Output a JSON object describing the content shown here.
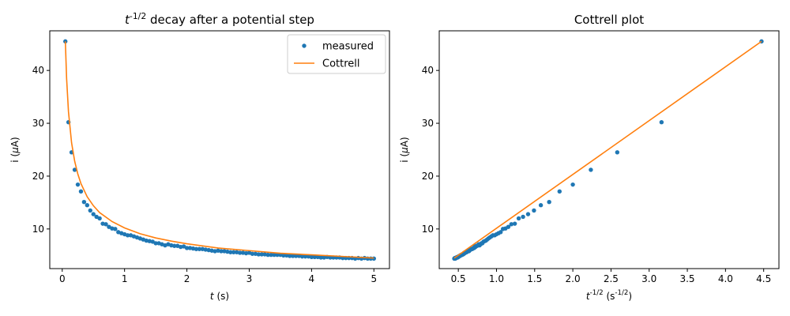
{
  "colors": {
    "measured": "#1f77b4",
    "fit": "#ff7f0e"
  },
  "chart_data": [
    {
      "type": "scatter",
      "title": "t^{-1/2} decay after a potential step",
      "xlabel": "t (s)",
      "ylabel": "i (μA)",
      "xlim": [
        -0.2,
        5.25
      ],
      "ylim": [
        2.5,
        47.5
      ],
      "xticks": [
        0,
        1,
        2,
        3,
        4,
        5
      ],
      "yticks": [
        10,
        20,
        30,
        40
      ],
      "grid": false,
      "legend_position": "top-right",
      "series": [
        {
          "name": "measured",
          "kind": "markers",
          "x": [
            0.05,
            0.1,
            0.15,
            0.2,
            0.25,
            0.3,
            0.35,
            0.4,
            0.45,
            0.5,
            0.55,
            0.6,
            0.65,
            0.7,
            0.75,
            0.8,
            0.85,
            0.9,
            0.95,
            1.0,
            1.05,
            1.1,
            1.15,
            1.2,
            1.25,
            1.3,
            1.35,
            1.4,
            1.45,
            1.5,
            1.55,
            1.6,
            1.65,
            1.7,
            1.75,
            1.8,
            1.85,
            1.9,
            1.95,
            2.0,
            2.05,
            2.1,
            2.15,
            2.2,
            2.25,
            2.3,
            2.35,
            2.4,
            2.45,
            2.5,
            2.55,
            2.6,
            2.65,
            2.7,
            2.75,
            2.8,
            2.85,
            2.9,
            2.95,
            3.0,
            3.05,
            3.1,
            3.15,
            3.2,
            3.25,
            3.3,
            3.35,
            3.4,
            3.45,
            3.5,
            3.55,
            3.6,
            3.65,
            3.7,
            3.75,
            3.8,
            3.85,
            3.9,
            3.95,
            4.0,
            4.05,
            4.1,
            4.15,
            4.2,
            4.25,
            4.3,
            4.35,
            4.4,
            4.45,
            4.5,
            4.55,
            4.6,
            4.65,
            4.7,
            4.75,
            4.8,
            4.85,
            4.9,
            4.95,
            5.0
          ],
          "y": [
            45.5,
            30.2,
            24.5,
            21.2,
            18.4,
            17.1,
            15.1,
            14.5,
            13.5,
            12.8,
            12.3,
            12.0,
            11.0,
            10.9,
            10.4,
            10.1,
            10.0,
            9.4,
            9.2,
            9.0,
            8.8,
            8.8,
            8.6,
            8.4,
            8.2,
            8.0,
            7.8,
            7.7,
            7.6,
            7.3,
            7.3,
            7.1,
            6.9,
            7.1,
            6.9,
            6.8,
            6.8,
            6.6,
            6.7,
            6.4,
            6.4,
            6.3,
            6.2,
            6.2,
            6.2,
            6.1,
            6.0,
            5.9,
            5.8,
            5.9,
            5.8,
            5.8,
            5.7,
            5.6,
            5.6,
            5.6,
            5.5,
            5.5,
            5.4,
            5.5,
            5.3,
            5.3,
            5.2,
            5.2,
            5.2,
            5.1,
            5.1,
            5.1,
            5.1,
            5.1,
            5.0,
            5.0,
            4.9,
            4.9,
            4.9,
            4.9,
            4.8,
            4.8,
            4.8,
            4.7,
            4.7,
            4.7,
            4.6,
            4.6,
            4.7,
            4.6,
            4.6,
            4.6,
            4.6,
            4.5,
            4.5,
            4.5,
            4.5,
            4.4,
            4.5,
            4.4,
            4.5,
            4.4,
            4.4,
            4.4
          ]
        },
        {
          "name": "Cottrell",
          "kind": "line",
          "x": [
            0.05,
            0.07,
            0.1,
            0.15,
            0.2,
            0.25,
            0.3,
            0.4,
            0.5,
            0.6,
            0.8,
            1.0,
            1.25,
            1.5,
            1.75,
            2.0,
            2.5,
            3.0,
            3.5,
            4.0,
            4.5,
            5.0
          ],
          "y": [
            45.5,
            38.5,
            32.2,
            26.3,
            22.8,
            20.4,
            18.6,
            16.1,
            14.4,
            13.1,
            11.4,
            10.2,
            9.1,
            8.3,
            7.7,
            7.2,
            6.4,
            5.9,
            5.4,
            5.1,
            4.8,
            4.5
          ]
        }
      ]
    },
    {
      "type": "scatter",
      "title": "Cottrell plot",
      "xlabel": "t^{-1/2} (s^{-1/2})",
      "ylabel": "i (μA)",
      "xlim": [
        0.25,
        4.7
      ],
      "ylim": [
        2.5,
        47.5
      ],
      "xticks": [
        0.5,
        1.0,
        1.5,
        2.0,
        2.5,
        3.0,
        3.5,
        4.0,
        4.5
      ],
      "xtick_labels": [
        "0.5",
        "1.0",
        "1.5",
        "2.0",
        "2.5",
        "3.0",
        "3.5",
        "4.0",
        "4.5"
      ],
      "yticks": [
        10,
        20,
        30,
        40
      ],
      "grid": false,
      "series": [
        {
          "name": "",
          "kind": "line",
          "x": [
            0.447,
            4.472
          ],
          "y": [
            4.5,
            45.5
          ]
        },
        {
          "name": "",
          "kind": "markers",
          "x": [
            4.472,
            3.162,
            2.582,
            2.236,
            2.0,
            1.826,
            1.69,
            1.581,
            1.491,
            1.414,
            1.348,
            1.291,
            1.24,
            1.195,
            1.155,
            1.118,
            1.085,
            1.054,
            1.026,
            1.0,
            0.976,
            0.953,
            0.933,
            0.913,
            0.894,
            0.877,
            0.861,
            0.845,
            0.83,
            0.816,
            0.803,
            0.791,
            0.778,
            0.767,
            0.756,
            0.745,
            0.735,
            0.725,
            0.716,
            0.707,
            0.698,
            0.69,
            0.682,
            0.674,
            0.667,
            0.659,
            0.652,
            0.645,
            0.639,
            0.632,
            0.626,
            0.62,
            0.614,
            0.609,
            0.603,
            0.598,
            0.592,
            0.587,
            0.582,
            0.577,
            0.573,
            0.568,
            0.563,
            0.559,
            0.555,
            0.55,
            0.546,
            0.542,
            0.538,
            0.535,
            0.531,
            0.527,
            0.523,
            0.52,
            0.516,
            0.513,
            0.51,
            0.506,
            0.503,
            0.5,
            0.497,
            0.494,
            0.491,
            0.488,
            0.485,
            0.482,
            0.479,
            0.477,
            0.474,
            0.471,
            0.469,
            0.466,
            0.464,
            0.461,
            0.459,
            0.456,
            0.454,
            0.452,
            0.449,
            0.447
          ],
          "y": [
            45.5,
            30.2,
            24.5,
            21.2,
            18.4,
            17.1,
            15.1,
            14.5,
            13.5,
            12.8,
            12.3,
            12.0,
            11.0,
            10.9,
            10.4,
            10.1,
            10.0,
            9.4,
            9.2,
            9.0,
            8.8,
            8.8,
            8.6,
            8.4,
            8.2,
            8.0,
            7.8,
            7.7,
            7.6,
            7.3,
            7.3,
            7.1,
            6.9,
            7.1,
            6.9,
            6.8,
            6.8,
            6.6,
            6.7,
            6.4,
            6.4,
            6.3,
            6.2,
            6.2,
            6.2,
            6.1,
            6.0,
            5.9,
            5.8,
            5.9,
            5.8,
            5.8,
            5.7,
            5.6,
            5.6,
            5.6,
            5.5,
            5.5,
            5.4,
            5.5,
            5.3,
            5.3,
            5.2,
            5.2,
            5.2,
            5.1,
            5.1,
            5.1,
            5.1,
            5.1,
            5.0,
            5.0,
            4.9,
            4.9,
            4.9,
            4.9,
            4.8,
            4.8,
            4.8,
            4.7,
            4.7,
            4.7,
            4.6,
            4.6,
            4.7,
            4.6,
            4.6,
            4.6,
            4.6,
            4.5,
            4.5,
            4.5,
            4.5,
            4.4,
            4.5,
            4.4,
            4.5,
            4.4,
            4.4,
            4.4
          ]
        }
      ]
    }
  ]
}
